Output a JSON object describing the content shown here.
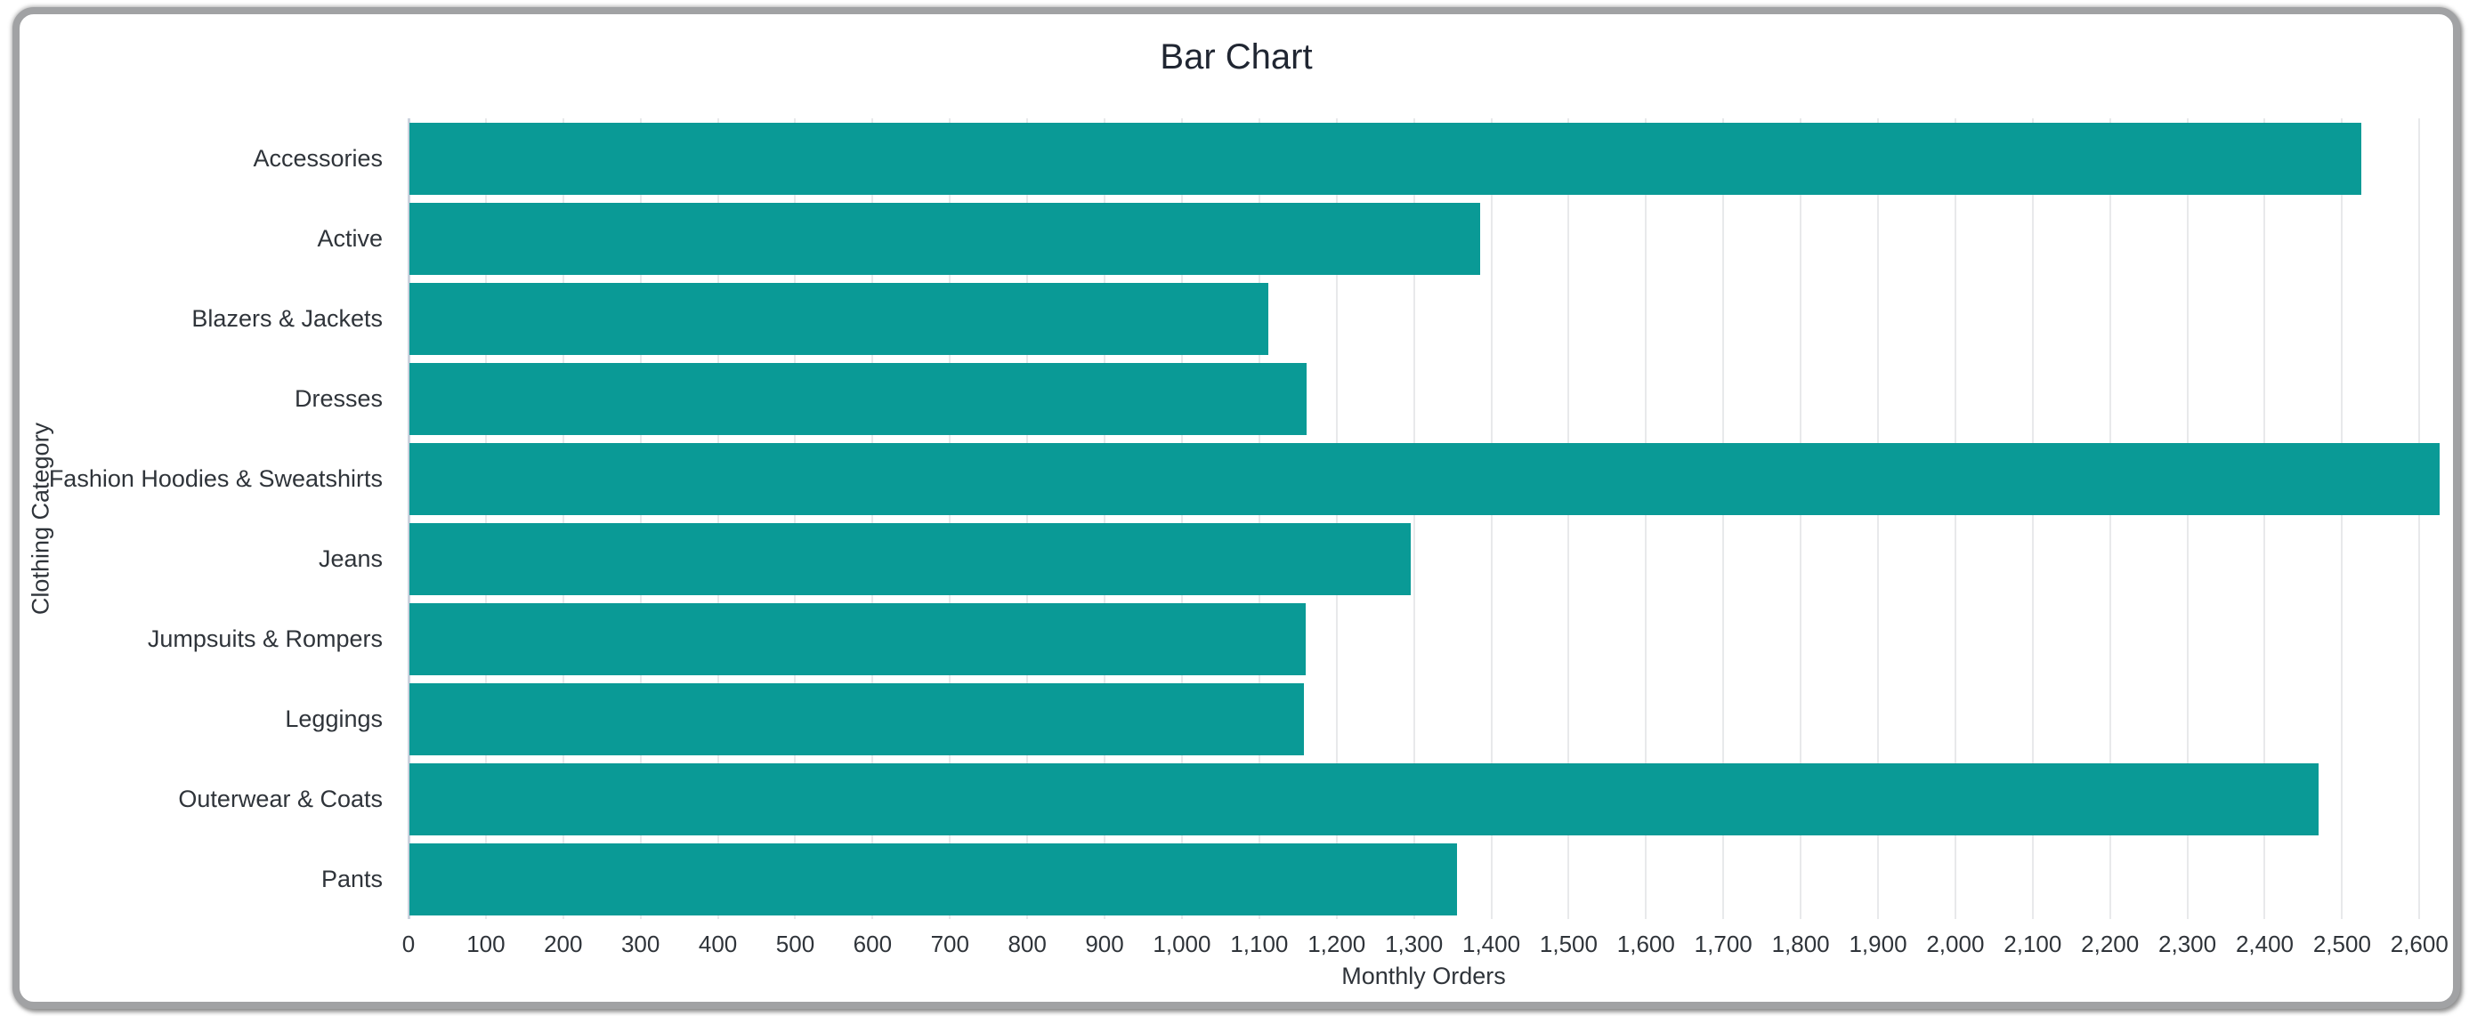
{
  "window": {
    "frame_color": "#a1a2a4",
    "background_color": "#ffffff"
  },
  "chart_data": {
    "type": "bar",
    "orientation": "horizontal",
    "title": "Bar Chart",
    "xlabel": "Monthly Orders",
    "ylabel": "Clothing Category",
    "categories": [
      "Accessories",
      "Active",
      "Blazers & Jackets",
      "Dresses",
      "Fashion Hoodies & Sweatshirts",
      "Jeans",
      "Jumpsuits & Rompers",
      "Leggings",
      "Outerwear & Coats",
      "Pants"
    ],
    "values": [
      2524,
      1385,
      1110,
      1160,
      2625,
      1295,
      1159,
      1157,
      2468,
      1354
    ],
    "xlim": [
      0,
      2625
    ],
    "x_tick_step": 100,
    "x_tick_labels": [
      "0",
      "100",
      "200",
      "300",
      "400",
      "500",
      "600",
      "700",
      "800",
      "900",
      "1,000",
      "1,100",
      "1,200",
      "1,300",
      "1,400",
      "1,500",
      "1,600",
      "1,700",
      "1,800",
      "1,900",
      "2,000",
      "2,100",
      "2,200",
      "2,300",
      "2,400",
      "2,500",
      "2,600"
    ],
    "grid": true,
    "legend": "none",
    "bar_color": "#0a9a96",
    "gridline_color": "#e8e9eb",
    "axis_line_color": "#ccd3de",
    "text_color": "#2f343a",
    "title_color": "#202632"
  }
}
